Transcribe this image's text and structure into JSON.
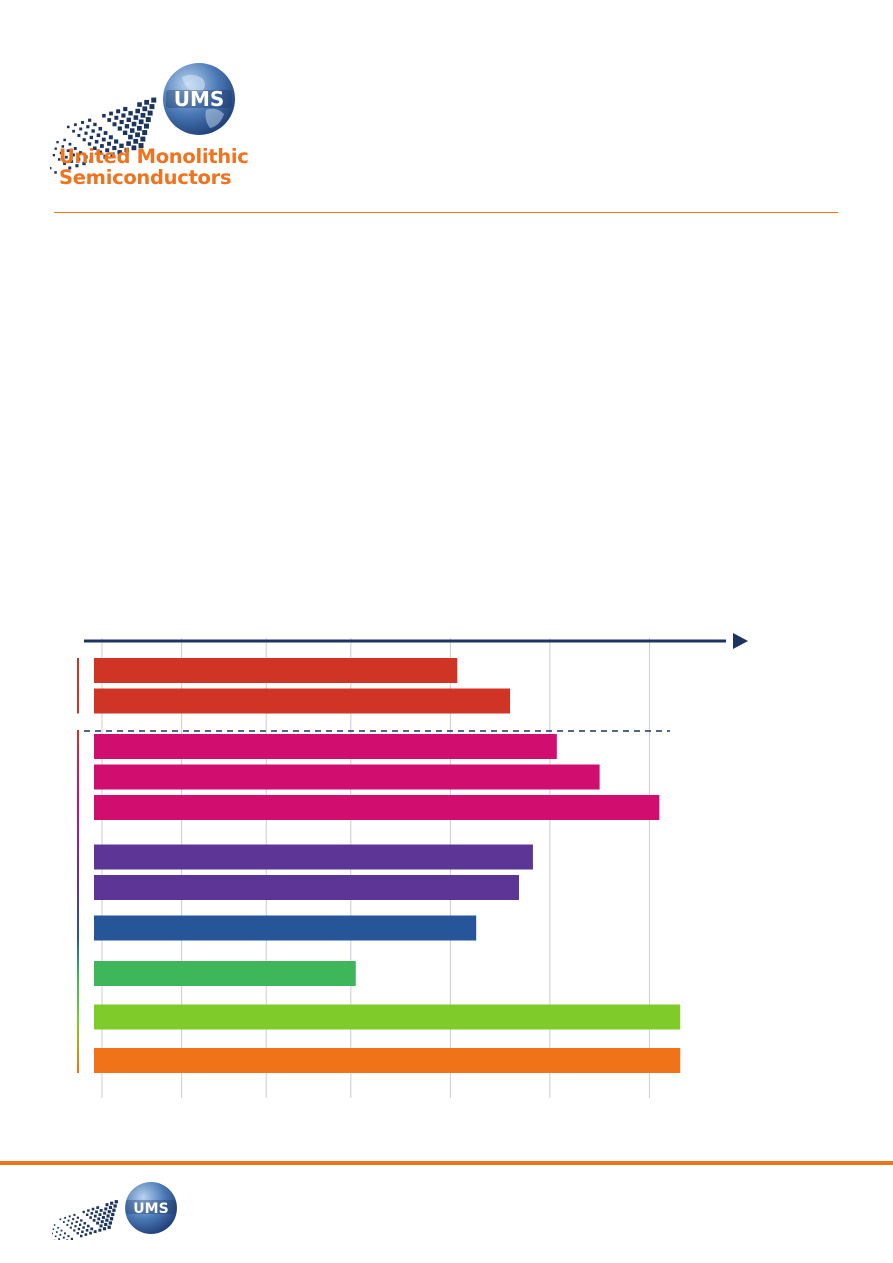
{
  "brand": {
    "name_line1": "United Monolithic",
    "name_line2": "Semiconductors",
    "logo_text": "UMS",
    "color_orange": "#f07320",
    "color_navy": "#1b3560"
  },
  "chart_data": {
    "type": "bar",
    "orientation": "horizontal",
    "title": "",
    "xlabel": "",
    "ylabel": "",
    "xlim": [
      0,
      6.4
    ],
    "x_gridlines": [
      0,
      0.8,
      1.65,
      2.5,
      3.5,
      4.5,
      5.5
    ],
    "grid": true,
    "legend": "none",
    "tick_labels_printed": false,
    "groups": [
      {
        "color": "#cf3424",
        "values": [
          3.65,
          4.18
        ]
      },
      {
        "color": "#d10d6f",
        "values": [
          4.65,
          5.08,
          5.68
        ]
      },
      {
        "color": "#5c3596",
        "values": [
          4.41,
          4.27
        ]
      },
      {
        "color": "#245699",
        "values": [
          3.84
        ]
      },
      {
        "color": "#3db75a",
        "values": [
          2.63
        ]
      },
      {
        "color": "#7ecb2a",
        "values": [
          5.89
        ]
      },
      {
        "color": "#f07319",
        "values": [
          5.89
        ]
      }
    ],
    "separator_after_group": 0
  }
}
